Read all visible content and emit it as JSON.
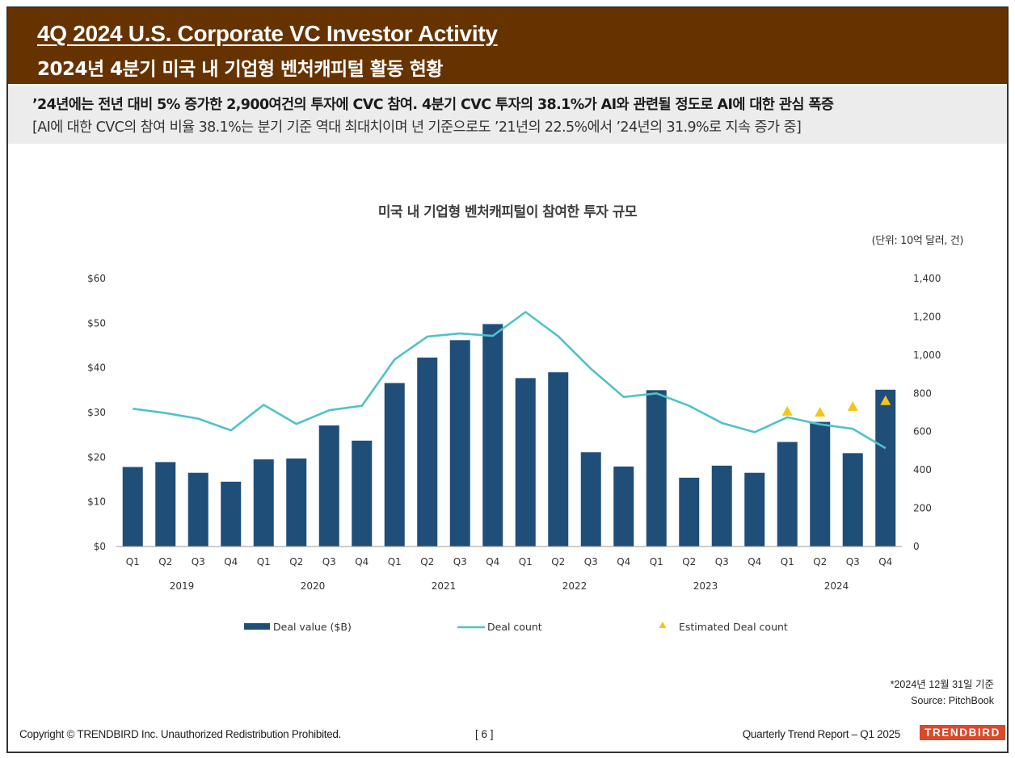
{
  "header": {
    "title_en": "4Q 2024 U.S. Corporate VC Investor Activity",
    "title_ko": "2024년 4분기 미국 내 기업형 벤처캐피털 활동 현황"
  },
  "summary": {
    "line1": "’24년에는 전년 대비 5% 증가한 2,900여건의 투자에 CVC 참여. 4분기 CVC 투자의 38.1%가 AI와 관련될 정도로 AI에 대한 관심 폭증",
    "line2": "[AI에 대한 CVC의 참여 비율 38.1%는 분기 기준 역대 최대치이며 년 기준으로도 ’21년의 22.5%에서 ’24년의 31.9%로 지속 증가 중]"
  },
  "chart_data": {
    "type": "bar",
    "title": "미국 내 기업형 벤처캐피털이 참여한 투자 규모",
    "unit_label": "(단위: 10억 달러, 건)",
    "categories": [
      "Q1",
      "Q2",
      "Q3",
      "Q4",
      "Q1",
      "Q2",
      "Q3",
      "Q4",
      "Q1",
      "Q2",
      "Q3",
      "Q4",
      "Q1",
      "Q2",
      "Q3",
      "Q4",
      "Q1",
      "Q2",
      "Q3",
      "Q4",
      "Q1",
      "Q2",
      "Q3",
      "Q4"
    ],
    "years": [
      "2019",
      "2020",
      "2021",
      "2022",
      "2023",
      "2024"
    ],
    "left_axis": {
      "ticks": [
        "$0",
        "$10",
        "$20",
        "$30",
        "$40",
        "$50",
        "$60"
      ],
      "ylim": [
        0,
        60
      ]
    },
    "right_axis": {
      "ticks": [
        "0",
        "200",
        "400",
        "600",
        "800",
        "1,000",
        "1,200",
        "1,400"
      ],
      "ylim": [
        0,
        1400
      ]
    },
    "series": [
      {
        "name": "Deal value ($B)",
        "type": "bar",
        "axis": "left",
        "color": "#1f4e79",
        "values": [
          17.8,
          18.9,
          16.5,
          14.5,
          19.5,
          19.7,
          27.1,
          23.7,
          36.6,
          42.3,
          46.2,
          49.8,
          37.7,
          39.0,
          21.1,
          17.9,
          35.0,
          15.4,
          18.1,
          16.5,
          23.4,
          27.9,
          20.9,
          35.1
        ]
      },
      {
        "name": "Deal count",
        "type": "line",
        "axis": "right",
        "color": "#4fc3c9",
        "values": [
          720,
          697,
          668,
          607,
          740,
          640,
          712,
          735,
          977,
          1097,
          1113,
          1100,
          1225,
          1098,
          928,
          781,
          800,
          735,
          645,
          597,
          675,
          638,
          615,
          513
        ]
      },
      {
        "name": "Estimated Deal count",
        "type": "scatter",
        "axis": "right",
        "color": "#f5c518",
        "values": [
          null,
          null,
          null,
          null,
          null,
          null,
          null,
          null,
          null,
          null,
          null,
          null,
          null,
          null,
          null,
          null,
          null,
          null,
          null,
          null,
          705,
          700,
          730,
          760
        ]
      }
    ],
    "legend": {
      "placement": "bottom"
    }
  },
  "footnote": {
    "date": "*2024년 12월 31일 기준",
    "source": "Source: PitchBook"
  },
  "footer": {
    "copyright": "Copyright © TRENDBIRD Inc. Unauthorized Redistribution Prohibited.",
    "page": "[ 6 ]",
    "report": "Quarterly Trend Report – Q1 2025",
    "brand": "TRENDBIRD"
  }
}
